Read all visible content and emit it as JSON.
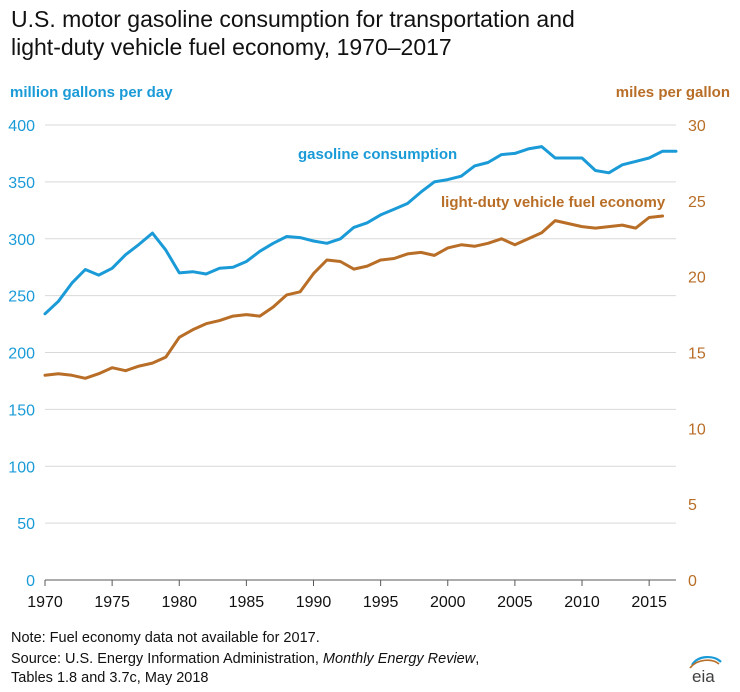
{
  "title_line1": "U.S. motor gasoline consumption for transportation and",
  "title_line2": "light-duty vehicle fuel economy, 1970–2017",
  "note_line1": "Note: Fuel economy data not available for 2017.",
  "source_prefix": "Source: U.S. Energy Information Administration, ",
  "source_publication": "Monthly Energy Review",
  "source_suffix": ",",
  "source_line2": "Tables 1.8 and 3.7c, May 2018",
  "logo_text": "eia",
  "colors": {
    "gasoline": "#1a9bd7",
    "fuel_economy": "#b86e27",
    "grid": "#d9d9d9",
    "axis": "#595959"
  },
  "chart_data": {
    "type": "line",
    "left_axis_label": "million gallons per day",
    "right_axis_label": "miles per gallon",
    "xlim": [
      1970,
      2017
    ],
    "x_ticks": [
      1970,
      1975,
      1980,
      1985,
      1990,
      1995,
      2000,
      2005,
      2010,
      2015
    ],
    "ylim_left": [
      0,
      400
    ],
    "y_ticks_left": [
      0,
      50,
      100,
      150,
      200,
      250,
      300,
      350,
      400
    ],
    "ylim_right": [
      0,
      30
    ],
    "y_ticks_right": [
      0,
      5,
      10,
      15,
      20,
      25,
      30
    ],
    "grid": "horizontal",
    "series": [
      {
        "name": "gasoline consumption",
        "axis": "left",
        "x": [
          1970,
          1971,
          1972,
          1973,
          1974,
          1975,
          1976,
          1977,
          1978,
          1979,
          1980,
          1981,
          1982,
          1983,
          1984,
          1985,
          1986,
          1987,
          1988,
          1989,
          1990,
          1991,
          1992,
          1993,
          1994,
          1995,
          1996,
          1997,
          1998,
          1999,
          2000,
          2001,
          2002,
          2003,
          2004,
          2005,
          2006,
          2007,
          2008,
          2009,
          2010,
          2011,
          2012,
          2013,
          2014,
          2015,
          2016,
          2017
        ],
        "values": [
          234,
          245,
          261,
          273,
          268,
          274,
          286,
          295,
          305,
          290,
          270,
          271,
          269,
          274,
          275,
          280,
          289,
          296,
          302,
          301,
          298,
          296,
          300,
          310,
          314,
          321,
          326,
          331,
          341,
          350,
          352,
          355,
          364,
          367,
          374,
          375,
          379,
          381,
          371,
          371,
          371,
          360,
          358,
          365,
          368,
          371,
          377,
          377
        ]
      },
      {
        "name": "light-duty vehicle fuel economy",
        "axis": "right",
        "x": [
          1970,
          1971,
          1972,
          1973,
          1974,
          1975,
          1976,
          1977,
          1978,
          1979,
          1980,
          1981,
          1982,
          1983,
          1984,
          1985,
          1986,
          1987,
          1988,
          1989,
          1990,
          1991,
          1992,
          1993,
          1994,
          1995,
          1996,
          1997,
          1998,
          1999,
          2000,
          2001,
          2002,
          2003,
          2004,
          2005,
          2006,
          2007,
          2008,
          2009,
          2010,
          2011,
          2012,
          2013,
          2014,
          2015,
          2016
        ],
        "values": [
          13.5,
          13.6,
          13.5,
          13.3,
          13.6,
          14.0,
          13.8,
          14.1,
          14.3,
          14.7,
          16.0,
          16.5,
          16.9,
          17.1,
          17.4,
          17.5,
          17.4,
          18.0,
          18.8,
          19.0,
          20.2,
          21.1,
          21.0,
          20.5,
          20.7,
          21.1,
          21.2,
          21.5,
          21.6,
          21.4,
          21.9,
          22.1,
          22.0,
          22.2,
          22.5,
          22.1,
          22.5,
          22.9,
          23.7,
          23.5,
          23.3,
          23.2,
          23.3,
          23.4,
          23.2,
          23.9,
          24.0
        ]
      }
    ]
  }
}
